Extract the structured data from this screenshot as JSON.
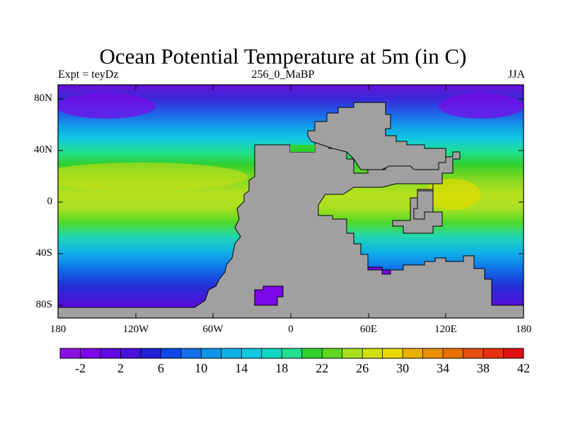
{
  "title": "Ocean Potential Temperature at 5m (in C)",
  "left_label": "Expt = teyDz",
  "center_label": "256_0_MaBP",
  "right_label": "JJA",
  "x_ticks": [
    "180",
    "120W",
    "60W",
    "0",
    "60E",
    "120E",
    "180"
  ],
  "y_ticks": [
    "80N",
    "40N",
    "0",
    "40S",
    "80S"
  ],
  "colorbar": {
    "labels": [
      "-2",
      "2",
      "6",
      "10",
      "14",
      "18",
      "22",
      "26",
      "30",
      "34",
      "38",
      "42"
    ],
    "colors": [
      "#8c10e0",
      "#7a08e8",
      "#6208e0",
      "#4810d8",
      "#2020d8",
      "#1048e8",
      "#1070e8",
      "#1094e8",
      "#10b0e8",
      "#10c8e0",
      "#10d8c0",
      "#20e090",
      "#30d030",
      "#60d820",
      "#a8e020",
      "#d0e010",
      "#e8d800",
      "#e8b000",
      "#e89000",
      "#e87000",
      "#e85010",
      "#e83010",
      "#e01010"
    ]
  },
  "colors": {
    "land": "#a0a0a0",
    "polar": "#7a08e8",
    "deep_blue": "#2828d8"
  }
}
